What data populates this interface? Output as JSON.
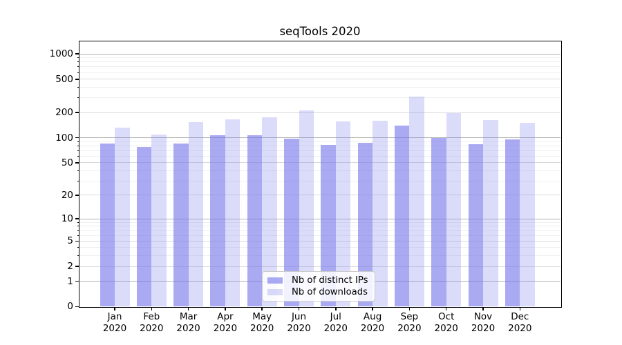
{
  "chart_data": {
    "type": "bar",
    "title": "seqTools 2020",
    "categories": [
      "Jan",
      "Feb",
      "Mar",
      "Apr",
      "May",
      "Jun",
      "Jul",
      "Aug",
      "Sep",
      "Oct",
      "Nov",
      "Dec"
    ],
    "x_year_label": "2020",
    "series": [
      {
        "name": "Nb of distinct IPs",
        "color": "rgba(118,118,235,0.62)",
        "values": [
          86,
          77,
          85,
          108,
          107,
          97,
          82,
          87,
          140,
          100,
          83,
          95
        ]
      },
      {
        "name": "Nb of downloads",
        "color": "rgba(136,136,240,0.30)",
        "values": [
          131,
          110,
          154,
          165,
          177,
          211,
          157,
          161,
          313,
          197,
          162,
          150
        ]
      }
    ],
    "xlabel": "",
    "ylabel": "",
    "yscale": "log1p",
    "ylim": [
      0,
      1380
    ],
    "yticks": [
      0,
      1,
      2,
      5,
      10,
      20,
      50,
      100,
      200,
      500,
      1000
    ],
    "grid": true,
    "legend_position": "lower center"
  },
  "colors": {
    "spine": "#000000",
    "grid_decade": "#b0b0b0",
    "grid_sub": "#d9d9d9",
    "grid_minor": "#efefef",
    "legend_border": "#cccccc",
    "legend_background": "rgba(255,255,255,0.85)",
    "text": "#000000"
  }
}
